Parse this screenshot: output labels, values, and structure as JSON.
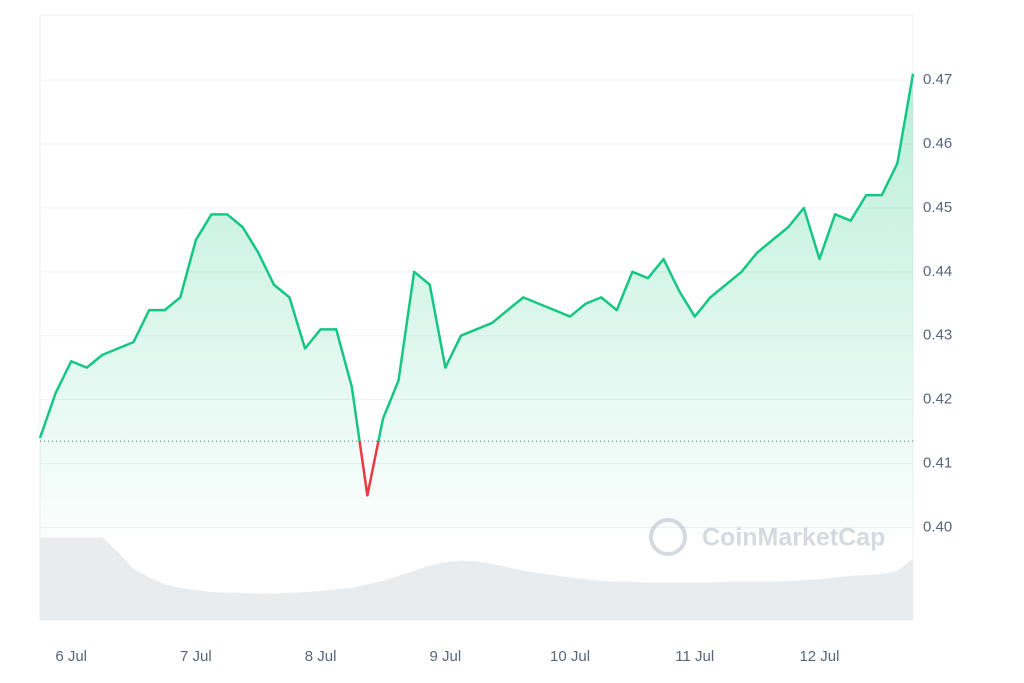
{
  "chart_data": {
    "type": "line",
    "categories": [
      null,
      null,
      "6 Jul",
      null,
      null,
      null,
      null,
      null,
      null,
      null,
      "7 Jul",
      null,
      null,
      null,
      null,
      null,
      null,
      null,
      "8 Jul",
      null,
      null,
      null,
      null,
      null,
      null,
      null,
      "9 Jul",
      null,
      null,
      null,
      null,
      null,
      null,
      null,
      "10 Jul",
      null,
      null,
      null,
      null,
      null,
      null,
      null,
      "11 Jul",
      null,
      null,
      null,
      null,
      null,
      null,
      null,
      "12 Jul",
      null,
      null,
      null,
      null,
      null,
      null
    ],
    "series": [
      {
        "color": "#16c784",
        "values": [
          0.414,
          0.421,
          0.426,
          0.425,
          0.427,
          0.428,
          0.429,
          0.434,
          0.434,
          0.436,
          0.445,
          0.449,
          0.449,
          0.447,
          0.443,
          0.438,
          0.436,
          0.428,
          0.431,
          0.431,
          0.422,
          0.405,
          0.417,
          0.423,
          0.44,
          0.438,
          0.425,
          0.43,
          0.431,
          0.432,
          0.434,
          0.436,
          0.435,
          0.434,
          0.433,
          0.435,
          0.436,
          0.434,
          0.44,
          0.439,
          0.442,
          0.437,
          0.433,
          0.436,
          0.438,
          0.44,
          0.443,
          0.445,
          0.447,
          0.45,
          0.442,
          0.449,
          0.448,
          0.452,
          0.452,
          0.457,
          0.471
        ]
      }
    ],
    "below_color": "#ea3943",
    "baseline": 0.4135,
    "volume": {
      "color": "#e9ecef",
      "values": [
        97,
        97,
        97,
        97,
        97,
        80,
        60,
        50,
        42,
        38,
        35,
        33,
        32,
        32,
        31,
        31,
        32,
        33,
        34,
        36,
        38,
        42,
        46,
        52,
        58,
        64,
        68,
        70,
        69,
        66,
        62,
        58,
        55,
        53,
        50,
        48,
        46,
        45,
        45,
        44,
        44,
        44,
        44,
        44,
        45,
        45,
        45,
        45,
        46,
        47,
        48,
        50,
        52,
        53,
        54,
        58,
        72
      ]
    },
    "y2lim": [
      0,
      100
    ],
    "ylim": [
      0.3855,
      0.4802
    ],
    "yticks": [
      {
        "value": 0.4,
        "label": "0.40"
      },
      0.41,
      0.42,
      0.43,
      0.44,
      0.45,
      0.46,
      0.47
    ],
    "grid": true,
    "watermark": "CoinMarketCap"
  }
}
